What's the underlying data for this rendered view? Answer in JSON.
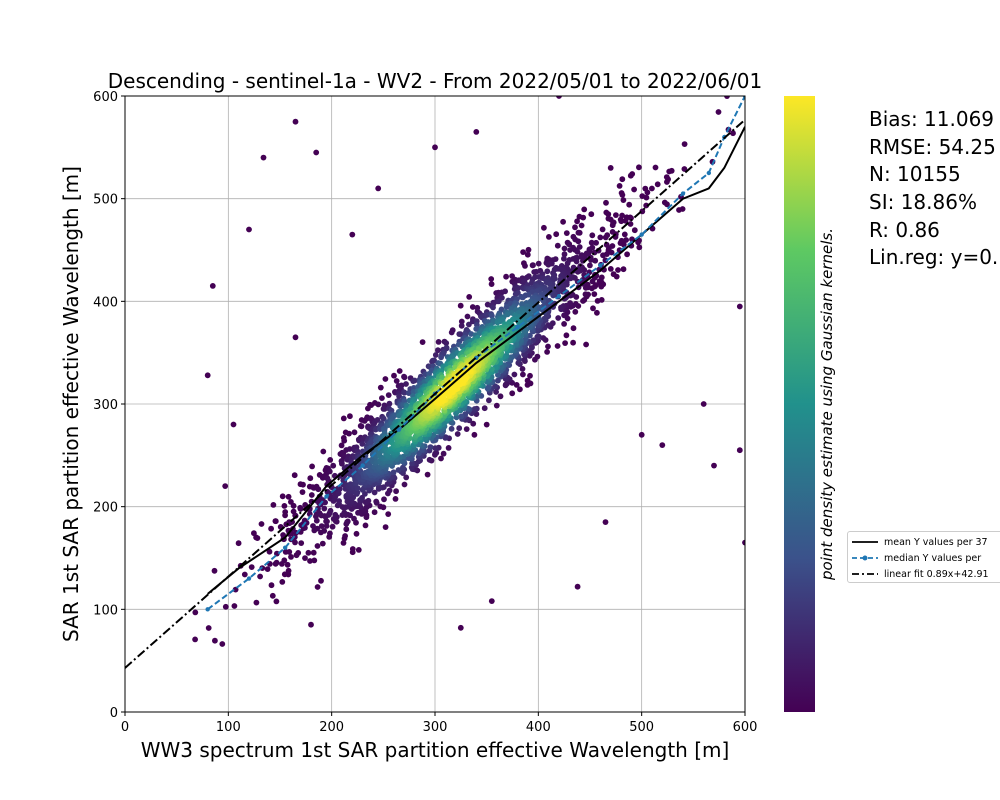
{
  "chart_data": {
    "type": "scatter",
    "title": "Descending - sentinel-1a - WV2 - From 2022/05/01 to 2022/06/01",
    "xlabel": "WW3 spectrum 1st SAR partition effective Wavelength [m]",
    "ylabel": "SAR 1st SAR partition effective Wavelength [m]",
    "xlim": [
      0,
      600
    ],
    "ylim": [
      0,
      600
    ],
    "xticks": [
      "0",
      "100",
      "200",
      "300",
      "400",
      "500",
      "600"
    ],
    "yticks": [
      "0",
      "100",
      "200",
      "300",
      "400",
      "500",
      "600"
    ],
    "grid": true,
    "colorbar": {
      "label": "point density estimate using Gaussian kernels.",
      "colormap": "viridis",
      "stops": [
        "#440154",
        "#3b528b",
        "#21918c",
        "#5ec962",
        "#fde725"
      ]
    },
    "density_cloud": {
      "n_points_shown": 10155,
      "description_points": [
        [
          80,
          95
        ],
        [
          100,
          110
        ],
        [
          150,
          160
        ],
        [
          200,
          215
        ],
        [
          250,
          260
        ],
        [
          300,
          305
        ],
        [
          320,
          330
        ],
        [
          350,
          345
        ],
        [
          400,
          385
        ],
        [
          450,
          440
        ],
        [
          500,
          480
        ],
        [
          550,
          510
        ],
        [
          590,
          560
        ]
      ],
      "outliers": [
        [
          68,
          97
        ],
        [
          80,
          328
        ],
        [
          85,
          415
        ],
        [
          97,
          220
        ],
        [
          105,
          280
        ],
        [
          120,
          470
        ],
        [
          134,
          540
        ],
        [
          165,
          575
        ],
        [
          185,
          545
        ],
        [
          220,
          465
        ],
        [
          245,
          510
        ],
        [
          300,
          550
        ],
        [
          340,
          565
        ],
        [
          420,
          600
        ],
        [
          470,
          530
        ],
        [
          560,
          300
        ],
        [
          570,
          240
        ],
        [
          595,
          395
        ],
        [
          600,
          165
        ],
        [
          595,
          255
        ],
        [
          325,
          82
        ],
        [
          355,
          108
        ],
        [
          438,
          122
        ],
        [
          465,
          185
        ],
        [
          180,
          85
        ],
        [
          165,
          365
        ],
        [
          520,
          260
        ],
        [
          500,
          270
        ]
      ]
    },
    "series": [
      {
        "name": "mean Y values per 37",
        "style": "solid",
        "color": "#000000",
        "x": [
          80,
          110,
          155,
          195,
          230,
          265,
          300,
          340,
          380,
          420,
          460,
          500,
          540,
          565,
          580,
          600
        ],
        "y": [
          115,
          140,
          170,
          220,
          250,
          275,
          305,
          340,
          370,
          400,
          430,
          465,
          500,
          510,
          530,
          570
        ]
      },
      {
        "name": "median Y values per",
        "style": "dashed",
        "color": "#1f77b4",
        "x": [
          80,
          120,
          155,
          195,
          230,
          265,
          300,
          340,
          380,
          420,
          460,
          500,
          540,
          565,
          580,
          600
        ],
        "y": [
          100,
          130,
          160,
          210,
          240,
          275,
          310,
          345,
          375,
          405,
          435,
          465,
          505,
          525,
          560,
          600
        ]
      },
      {
        "name": "linear fit 0.89x+42.91",
        "style": "dashdot",
        "color": "#000000",
        "slope": 0.89,
        "intercept": 42.91
      }
    ],
    "stats": [
      "Bias: 11.069",
      "RMSE: 54.25",
      "N: 10155",
      "SI: 18.86%",
      "R: 0.86",
      "Lin.reg: y=0."
    ],
    "legend_position": "right"
  }
}
